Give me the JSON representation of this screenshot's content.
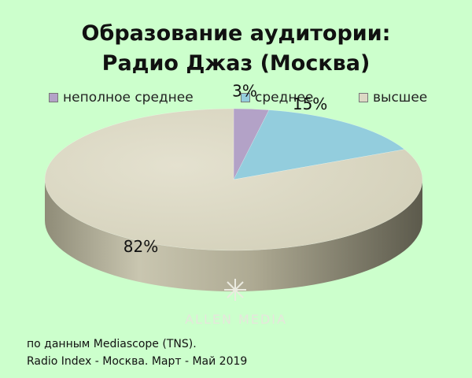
{
  "chart_data": {
    "type": "pie",
    "title_lines": [
      "Образование аудитории:",
      "Радио Джаз (Москва)"
    ],
    "categories": [
      "неполное  среднее",
      "среднее",
      "высшее"
    ],
    "values": [
      3,
      15,
      82
    ],
    "labels": [
      "3%",
      "15%",
      "82%"
    ],
    "colors": [
      "#b3a2c7",
      "#93cddd",
      "#dcd9c4"
    ],
    "legend_position": "top"
  },
  "footer": {
    "line1": "по данным Mediascope (TNS).",
    "line2": "Radio Index - Москва. Март - Май 2019"
  },
  "watermark": {
    "text": "ALLEN MEDIA"
  }
}
